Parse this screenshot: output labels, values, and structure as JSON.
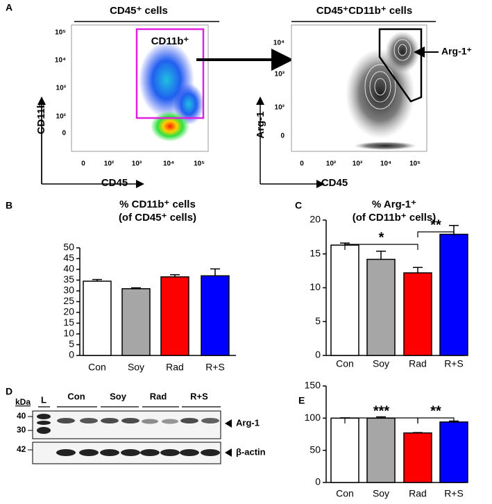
{
  "panel_labels": [
    "A",
    "B",
    "C",
    "D",
    "E"
  ],
  "flow": {
    "left": {
      "title": "CD45⁺ cells",
      "gate": "CD11b⁺",
      "y_label": "CD11b",
      "x_label": "CD45",
      "y_ticks": [
        "10⁵",
        "10⁴",
        "10³",
        "10²",
        "0"
      ],
      "x_ticks": [
        "0",
        "10²",
        "10³",
        "10⁴",
        "10⁵"
      ]
    },
    "right": {
      "title": "CD45⁺CD11b⁺ cells",
      "gate": "Arg-1⁺",
      "y_label": "Arg-1",
      "x_label": "CD45",
      "y_ticks": [
        "10⁴",
        "10³",
        "10²",
        "0"
      ],
      "x_ticks": [
        "0",
        "10²",
        "10³",
        "10⁴",
        "10⁵"
      ]
    }
  },
  "blot": {
    "unit": "kDa",
    "markers": [
      "40",
      "30",
      "42"
    ],
    "lanes": [
      "L",
      "Con",
      "Soy",
      "Rad",
      "R+S"
    ],
    "bands": [
      "Arg-1",
      "β-actin"
    ]
  },
  "chart_data": [
    {
      "type": "bar",
      "title": "% CD11b⁺ cells",
      "subtitle": "(of CD45⁺ cells)",
      "categories": [
        "Con",
        "Soy",
        "Rad",
        "R+S"
      ],
      "values": [
        34.5,
        31,
        36.5,
        37
      ],
      "errors": [
        0.8,
        0.4,
        1,
        3.2
      ],
      "colors": [
        "#ffffff",
        "#a6a6a6",
        "#ff0000",
        "#0000ff"
      ],
      "ylim": [
        0,
        50
      ],
      "yticks": [
        0,
        5,
        10,
        15,
        20,
        25,
        30,
        35,
        40,
        45,
        50
      ]
    },
    {
      "type": "bar",
      "title": "% Arg-1⁺",
      "subtitle": "(of CD11b⁺ cells)",
      "categories": [
        "Con",
        "Soy",
        "Rad",
        "R+S"
      ],
      "values": [
        16.3,
        14.2,
        12.2,
        17.9
      ],
      "errors": [
        0.3,
        1.2,
        0.8,
        1.3
      ],
      "colors": [
        "#ffffff",
        "#a6a6a6",
        "#ff0000",
        "#0000ff"
      ],
      "ylim": [
        0,
        20
      ],
      "yticks": [
        0,
        5,
        10,
        15,
        20
      ],
      "annotations": [
        {
          "text": "*",
          "between": [
            "Con",
            "Rad"
          ]
        },
        {
          "text": "**",
          "between": [
            "Rad",
            "R+S"
          ]
        }
      ]
    },
    {
      "type": "bar",
      "categories": [
        "Con",
        "Soy",
        "Rad",
        "R+S"
      ],
      "values": [
        100,
        100,
        77,
        94
      ],
      "errors": [
        0.5,
        2,
        0.5,
        1.5
      ],
      "colors": [
        "#ffffff",
        "#a6a6a6",
        "#ff0000",
        "#0000ff"
      ],
      "ylim": [
        0,
        150
      ],
      "yticks": [
        0,
        50,
        100,
        150
      ],
      "annotations": [
        {
          "text": "***",
          "between": [
            "Con",
            "Rad"
          ]
        },
        {
          "text": "**",
          "between": [
            "Rad",
            "R+S"
          ]
        }
      ]
    }
  ]
}
